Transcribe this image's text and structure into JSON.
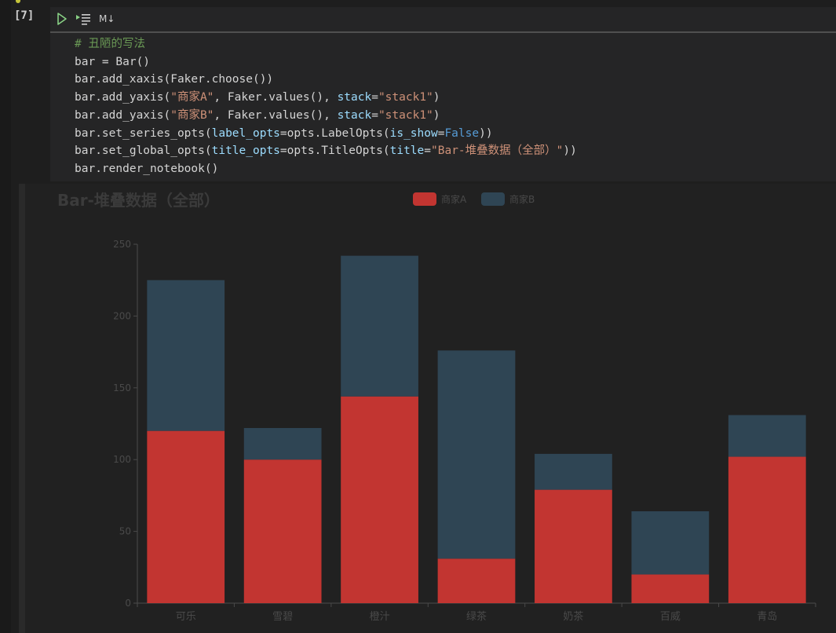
{
  "cell": {
    "execution_count": "[7]",
    "toolbar": {
      "run_icon": "run-cell-icon",
      "run_lines_icon": "run-by-line-icon",
      "markdown_label": "M↓"
    },
    "code_lines": [
      [
        {
          "t": "# 丑陋的写法",
          "k": "comment"
        }
      ],
      [
        {
          "t": "bar = Bar()",
          "k": "plain"
        }
      ],
      [
        {
          "t": "bar.add_xaxis(Faker.choose())",
          "k": "plain"
        }
      ],
      [
        {
          "t": "bar.add_yaxis(",
          "k": "plain"
        },
        {
          "t": "\"商家A\"",
          "k": "string"
        },
        {
          "t": ", Faker.values(), ",
          "k": "plain"
        },
        {
          "t": "stack",
          "k": "param"
        },
        {
          "t": "=",
          "k": "plain"
        },
        {
          "t": "\"stack1\"",
          "k": "string"
        },
        {
          "t": ")",
          "k": "plain"
        }
      ],
      [
        {
          "t": "bar.add_yaxis(",
          "k": "plain"
        },
        {
          "t": "\"商家B\"",
          "k": "string"
        },
        {
          "t": ", Faker.values(), ",
          "k": "plain"
        },
        {
          "t": "stack",
          "k": "param"
        },
        {
          "t": "=",
          "k": "plain"
        },
        {
          "t": "\"stack1\"",
          "k": "string"
        },
        {
          "t": ")",
          "k": "plain"
        }
      ],
      [
        {
          "t": "bar.set_series_opts(",
          "k": "plain"
        },
        {
          "t": "label_opts",
          "k": "param"
        },
        {
          "t": "=opts.LabelOpts(",
          "k": "plain"
        },
        {
          "t": "is_show",
          "k": "param"
        },
        {
          "t": "=",
          "k": "plain"
        },
        {
          "t": "False",
          "k": "const"
        },
        {
          "t": "))",
          "k": "plain"
        }
      ],
      [
        {
          "t": "bar.set_global_opts(",
          "k": "plain"
        },
        {
          "t": "title_opts",
          "k": "param"
        },
        {
          "t": "=opts.TitleOpts(",
          "k": "plain"
        },
        {
          "t": "title",
          "k": "param"
        },
        {
          "t": "=",
          "k": "plain"
        },
        {
          "t": "\"Bar-堆叠数据（全部）\"",
          "k": "string"
        },
        {
          "t": "))",
          "k": "plain"
        }
      ],
      [
        {
          "t": "bar.render_notebook()",
          "k": "plain"
        }
      ]
    ]
  },
  "chart_data": {
    "type": "bar",
    "stacked": true,
    "title": "Bar-堆叠数据（全部）",
    "categories": [
      "可乐",
      "雪碧",
      "橙汁",
      "绿茶",
      "奶茶",
      "百威",
      "青岛"
    ],
    "series": [
      {
        "name": "商家A",
        "color": "#c23531",
        "values": [
          120,
          100,
          144,
          31,
          79,
          20,
          102
        ]
      },
      {
        "name": "商家B",
        "color": "#2f4554",
        "values": [
          105,
          22,
          98,
          145,
          25,
          44,
          29
        ]
      }
    ],
    "ylim": [
      0,
      250
    ],
    "yticks": [
      0,
      50,
      100,
      150,
      200,
      250
    ],
    "grid": false,
    "legend_position": "top-center"
  },
  "colors": {
    "background": "#1e1e1e",
    "cell_background": "#252526",
    "output_background": "#212121",
    "axis": "#4a4a4a",
    "label_text": "#4a4a4a",
    "title_text": "#3b3b3b"
  }
}
